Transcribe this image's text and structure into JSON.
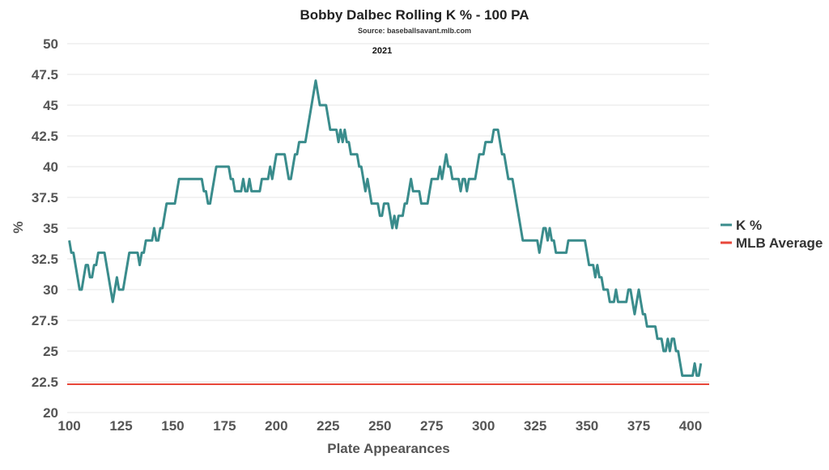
{
  "chart_data": {
    "type": "line",
    "title": "Bobby Dalbec Rolling K % - 100 PA",
    "source": "Source: baseballsavant.mlb.com",
    "subtitle": "2021",
    "xlabel": "Plate Appearances",
    "ylabel": "%",
    "xlim": [
      99,
      409
    ],
    "ylim": [
      20,
      50
    ],
    "x_ticks": [
      "100",
      "125",
      "150",
      "175",
      "200",
      "225",
      "250",
      "275",
      "300",
      "325",
      "350",
      "375",
      "400"
    ],
    "y_ticks": [
      "20",
      "22.5",
      "25",
      "27.5",
      "30",
      "32.5",
      "35",
      "37.5",
      "40",
      "42.5",
      "45",
      "47.5",
      "50"
    ],
    "grid": true,
    "legend_position": "right",
    "colors": {
      "k_pct": "#3a8c8c",
      "mlb_avg": "#e8473a"
    },
    "series": [
      {
        "name": "K %",
        "points": [
          [
            100,
            34
          ],
          [
            101,
            33
          ],
          [
            102,
            33
          ],
          [
            103,
            32
          ],
          [
            104,
            31
          ],
          [
            105,
            30
          ],
          [
            106,
            30
          ],
          [
            107,
            31
          ],
          [
            108,
            32
          ],
          [
            109,
            32
          ],
          [
            110,
            31
          ],
          [
            111,
            31
          ],
          [
            112,
            32
          ],
          [
            113,
            32
          ],
          [
            114,
            33
          ],
          [
            115,
            33
          ],
          [
            116,
            33
          ],
          [
            117,
            33
          ],
          [
            118,
            32
          ],
          [
            119,
            31
          ],
          [
            120,
            30
          ],
          [
            121,
            29
          ],
          [
            122,
            30
          ],
          [
            123,
            31
          ],
          [
            124,
            30
          ],
          [
            125,
            30
          ],
          [
            126,
            30
          ],
          [
            127,
            31
          ],
          [
            128,
            32
          ],
          [
            129,
            33
          ],
          [
            130,
            33
          ],
          [
            131,
            33
          ],
          [
            132,
            33
          ],
          [
            133,
            33
          ],
          [
            134,
            32
          ],
          [
            135,
            33
          ],
          [
            136,
            33
          ],
          [
            137,
            34
          ],
          [
            138,
            34
          ],
          [
            139,
            34
          ],
          [
            140,
            34
          ],
          [
            141,
            35
          ],
          [
            142,
            34
          ],
          [
            143,
            34
          ],
          [
            144,
            35
          ],
          [
            145,
            35
          ],
          [
            146,
            36
          ],
          [
            147,
            37
          ],
          [
            148,
            37
          ],
          [
            149,
            37
          ],
          [
            150,
            37
          ],
          [
            151,
            37
          ],
          [
            152,
            38
          ],
          [
            153,
            39
          ],
          [
            154,
            39
          ],
          [
            155,
            39
          ],
          [
            156,
            39
          ],
          [
            157,
            39
          ],
          [
            158,
            39
          ],
          [
            159,
            39
          ],
          [
            160,
            39
          ],
          [
            161,
            39
          ],
          [
            162,
            39
          ],
          [
            163,
            39
          ],
          [
            164,
            39
          ],
          [
            165,
            38
          ],
          [
            166,
            38
          ],
          [
            167,
            37
          ],
          [
            168,
            37
          ],
          [
            169,
            38
          ],
          [
            170,
            39
          ],
          [
            171,
            40
          ],
          [
            172,
            40
          ],
          [
            173,
            40
          ],
          [
            174,
            40
          ],
          [
            175,
            40
          ],
          [
            176,
            40
          ],
          [
            177,
            40
          ],
          [
            178,
            39
          ],
          [
            179,
            39
          ],
          [
            180,
            38
          ],
          [
            181,
            38
          ],
          [
            182,
            38
          ],
          [
            183,
            38
          ],
          [
            184,
            39
          ],
          [
            185,
            38
          ],
          [
            186,
            38
          ],
          [
            187,
            39
          ],
          [
            188,
            38
          ],
          [
            189,
            38
          ],
          [
            190,
            38
          ],
          [
            191,
            38
          ],
          [
            192,
            38
          ],
          [
            193,
            39
          ],
          [
            194,
            39
          ],
          [
            195,
            39
          ],
          [
            196,
            39
          ],
          [
            197,
            40
          ],
          [
            198,
            39
          ],
          [
            199,
            40
          ],
          [
            200,
            41
          ],
          [
            201,
            41
          ],
          [
            202,
            41
          ],
          [
            203,
            41
          ],
          [
            204,
            41
          ],
          [
            205,
            40
          ],
          [
            206,
            39
          ],
          [
            207,
            39
          ],
          [
            208,
            40
          ],
          [
            209,
            41
          ],
          [
            210,
            41
          ],
          [
            211,
            42
          ],
          [
            212,
            42
          ],
          [
            213,
            42
          ],
          [
            214,
            42
          ],
          [
            215,
            43
          ],
          [
            216,
            44
          ],
          [
            217,
            45
          ],
          [
            218,
            46
          ],
          [
            219,
            47
          ],
          [
            220,
            46
          ],
          [
            221,
            45
          ],
          [
            222,
            45
          ],
          [
            223,
            45
          ],
          [
            224,
            45
          ],
          [
            225,
            44
          ],
          [
            226,
            43
          ],
          [
            227,
            43
          ],
          [
            228,
            43
          ],
          [
            229,
            43
          ],
          [
            230,
            42
          ],
          [
            231,
            43
          ],
          [
            232,
            42
          ],
          [
            233,
            43
          ],
          [
            234,
            42
          ],
          [
            235,
            42
          ],
          [
            236,
            41
          ],
          [
            237,
            41
          ],
          [
            238,
            41
          ],
          [
            239,
            41
          ],
          [
            240,
            40
          ],
          [
            241,
            40
          ],
          [
            242,
            39
          ],
          [
            243,
            38
          ],
          [
            244,
            39
          ],
          [
            245,
            38
          ],
          [
            246,
            37
          ],
          [
            247,
            37
          ],
          [
            248,
            37
          ],
          [
            249,
            37
          ],
          [
            250,
            36
          ],
          [
            251,
            36
          ],
          [
            252,
            37
          ],
          [
            253,
            37
          ],
          [
            254,
            37
          ],
          [
            255,
            36
          ],
          [
            256,
            35
          ],
          [
            257,
            36
          ],
          [
            258,
            35
          ],
          [
            259,
            36
          ],
          [
            260,
            36
          ],
          [
            261,
            36
          ],
          [
            262,
            37
          ],
          [
            263,
            37
          ],
          [
            264,
            38
          ],
          [
            265,
            39
          ],
          [
            266,
            38
          ],
          [
            267,
            38
          ],
          [
            268,
            38
          ],
          [
            269,
            38
          ],
          [
            270,
            37
          ],
          [
            271,
            37
          ],
          [
            272,
            37
          ],
          [
            273,
            37
          ],
          [
            274,
            38
          ],
          [
            275,
            39
          ],
          [
            276,
            39
          ],
          [
            277,
            39
          ],
          [
            278,
            39
          ],
          [
            279,
            40
          ],
          [
            280,
            39
          ],
          [
            281,
            40
          ],
          [
            282,
            41
          ],
          [
            283,
            40
          ],
          [
            284,
            40
          ],
          [
            285,
            39
          ],
          [
            286,
            39
          ],
          [
            287,
            39
          ],
          [
            288,
            39
          ],
          [
            289,
            38
          ],
          [
            290,
            39
          ],
          [
            291,
            39
          ],
          [
            292,
            38
          ],
          [
            293,
            39
          ],
          [
            294,
            39
          ],
          [
            295,
            39
          ],
          [
            296,
            39
          ],
          [
            297,
            40
          ],
          [
            298,
            41
          ],
          [
            299,
            41
          ],
          [
            300,
            41
          ],
          [
            301,
            42
          ],
          [
            302,
            42
          ],
          [
            303,
            42
          ],
          [
            304,
            42
          ],
          [
            305,
            43
          ],
          [
            306,
            43
          ],
          [
            307,
            43
          ],
          [
            308,
            42
          ],
          [
            309,
            41
          ],
          [
            310,
            41
          ],
          [
            311,
            40
          ],
          [
            312,
            39
          ],
          [
            313,
            39
          ],
          [
            314,
            39
          ],
          [
            315,
            38
          ],
          [
            316,
            37
          ],
          [
            317,
            36
          ],
          [
            318,
            35
          ],
          [
            319,
            34
          ],
          [
            320,
            34
          ],
          [
            321,
            34
          ],
          [
            322,
            34
          ],
          [
            323,
            34
          ],
          [
            324,
            34
          ],
          [
            325,
            34
          ],
          [
            326,
            34
          ],
          [
            327,
            33
          ],
          [
            328,
            34
          ],
          [
            329,
            35
          ],
          [
            330,
            35
          ],
          [
            331,
            34
          ],
          [
            332,
            35
          ],
          [
            333,
            34
          ],
          [
            334,
            34
          ],
          [
            335,
            33
          ],
          [
            336,
            33
          ],
          [
            337,
            33
          ],
          [
            338,
            33
          ],
          [
            339,
            33
          ],
          [
            340,
            33
          ],
          [
            341,
            34
          ],
          [
            342,
            34
          ],
          [
            343,
            34
          ],
          [
            344,
            34
          ],
          [
            345,
            34
          ],
          [
            346,
            34
          ],
          [
            347,
            34
          ],
          [
            348,
            34
          ],
          [
            349,
            34
          ],
          [
            350,
            33
          ],
          [
            351,
            32
          ],
          [
            352,
            32
          ],
          [
            353,
            32
          ],
          [
            354,
            31
          ],
          [
            355,
            32
          ],
          [
            356,
            31
          ],
          [
            357,
            31
          ],
          [
            358,
            30
          ],
          [
            359,
            30
          ],
          [
            360,
            30
          ],
          [
            361,
            29
          ],
          [
            362,
            29
          ],
          [
            363,
            29
          ],
          [
            364,
            30
          ],
          [
            365,
            29
          ],
          [
            366,
            29
          ],
          [
            367,
            29
          ],
          [
            368,
            29
          ],
          [
            369,
            29
          ],
          [
            370,
            30
          ],
          [
            371,
            30
          ],
          [
            372,
            29
          ],
          [
            373,
            28
          ],
          [
            374,
            29
          ],
          [
            375,
            30
          ],
          [
            376,
            29
          ],
          [
            377,
            28
          ],
          [
            378,
            28
          ],
          [
            379,
            27
          ],
          [
            380,
            27
          ],
          [
            381,
            27
          ],
          [
            382,
            27
          ],
          [
            383,
            27
          ],
          [
            384,
            26
          ],
          [
            385,
            26
          ],
          [
            386,
            26
          ],
          [
            387,
            25
          ],
          [
            388,
            25
          ],
          [
            389,
            26
          ],
          [
            390,
            25
          ],
          [
            391,
            26
          ],
          [
            392,
            26
          ],
          [
            393,
            25
          ],
          [
            394,
            25
          ],
          [
            395,
            24
          ],
          [
            396,
            23
          ],
          [
            397,
            23
          ],
          [
            398,
            23
          ],
          [
            399,
            23
          ],
          [
            400,
            23
          ],
          [
            401,
            23
          ],
          [
            402,
            24
          ],
          [
            403,
            23
          ],
          [
            404,
            23
          ],
          [
            405,
            24
          ]
        ]
      },
      {
        "name": "MLB Average",
        "value": 22.3
      }
    ]
  }
}
